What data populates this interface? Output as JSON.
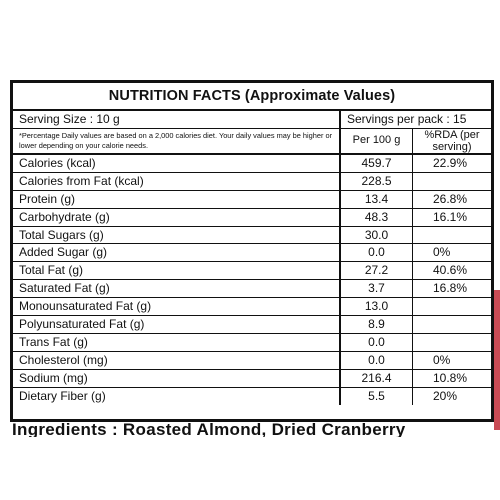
{
  "title": "NUTRITION FACTS (Approximate Values)",
  "serving_size": "Serving Size : 10 g",
  "servings_per_pack": "Servings per pack : 15",
  "disclaimer": "*Percentage Daily values are based on a 2,000 calories diet. Your daily values may be higher or lower depending on your calorie needs.",
  "col_per100": "Per 100 g",
  "col_rda": "%RDA (per serving)",
  "rows": [
    {
      "name": "Calories (kcal)",
      "value": "459.7",
      "rda": "22.9%"
    },
    {
      "name": "Calories from Fat (kcal)",
      "value": "228.5",
      "rda": ""
    },
    {
      "name": "Protein (g)",
      "value": "13.4",
      "rda": "26.8%"
    },
    {
      "name": "Carbohydrate (g)",
      "value": "48.3",
      "rda": "16.1%"
    },
    {
      "name": "Total Sugars (g)",
      "value": "30.0",
      "rda": ""
    },
    {
      "name": "Added Sugar (g)",
      "value": "0.0",
      "rda": "0%"
    },
    {
      "name": "Total Fat (g)",
      "value": "27.2",
      "rda": "40.6%"
    },
    {
      "name": "Saturated Fat (g)",
      "value": "3.7",
      "rda": "16.8%"
    },
    {
      "name": "Monounsaturated Fat (g)",
      "value": "13.0",
      "rda": ""
    },
    {
      "name": "Polyunsaturated Fat (g)",
      "value": "8.9",
      "rda": ""
    },
    {
      "name": "Trans Fat (g)",
      "value": "0.0",
      "rda": ""
    },
    {
      "name": "Cholesterol (mg)",
      "value": "0.0",
      "rda": "0%"
    },
    {
      "name": "Sodium (mg)",
      "value": "216.4",
      "rda": "10.8%"
    },
    {
      "name": "Dietary Fiber (g)",
      "value": "5.5",
      "rda": "20%"
    }
  ],
  "ingredients_partial": "Ingredients : Roasted Almond, Dried Cranberry"
}
